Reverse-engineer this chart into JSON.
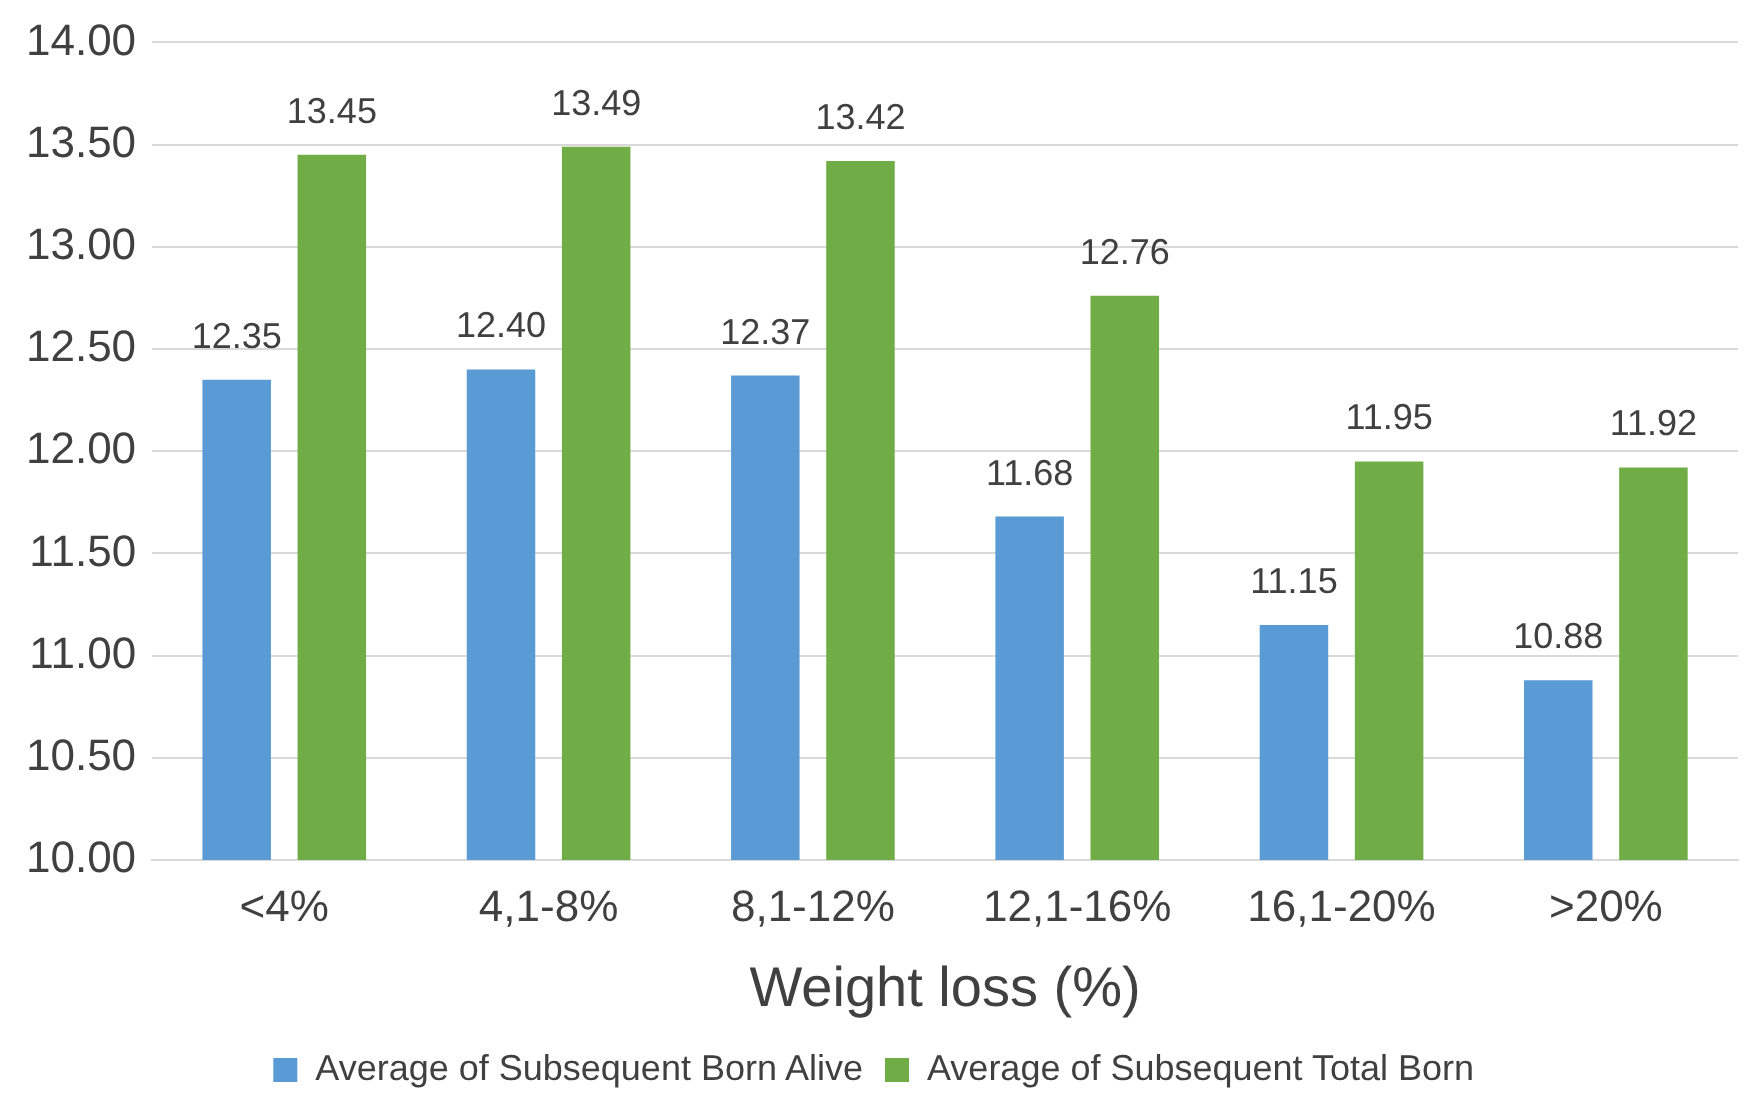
{
  "chart_data": {
    "type": "bar",
    "xlabel": "Weight loss (%)",
    "categories": [
      "<4%",
      "4,1-8%",
      "8,1-12%",
      "12,1-16%",
      "16,1-20%",
      ">20%"
    ],
    "series": [
      {
        "name": "Average of Subsequent Born Alive",
        "color": "#5b9bd5",
        "values": [
          12.35,
          12.4,
          12.37,
          11.68,
          11.15,
          10.88
        ],
        "value_labels": [
          "12.35",
          "12.40",
          "12.37",
          "11.68",
          "11.15",
          "10.88"
        ]
      },
      {
        "name": "Average of Subsequent Total Born",
        "color": "#70ad47",
        "values": [
          13.45,
          13.49,
          13.42,
          12.76,
          11.95,
          11.92
        ],
        "value_labels": [
          "13.45",
          "13.49",
          "13.42",
          "12.76",
          "11.95",
          "11.92"
        ]
      }
    ],
    "ylim": [
      10,
      14
    ],
    "yticks": [
      {
        "value": 10,
        "label": "10.00"
      },
      {
        "value": 10.5,
        "label": "10.50"
      },
      {
        "value": 11,
        "label": "11.00"
      },
      {
        "value": 11.5,
        "label": "11.50"
      },
      {
        "value": 12,
        "label": "12.00"
      },
      {
        "value": 12.5,
        "label": "12.50"
      },
      {
        "value": 13,
        "label": "13.00"
      },
      {
        "value": 13.5,
        "label": "13.50"
      },
      {
        "value": 14,
        "label": "14.00"
      }
    ],
    "grid": "y",
    "legend": "bottom"
  }
}
